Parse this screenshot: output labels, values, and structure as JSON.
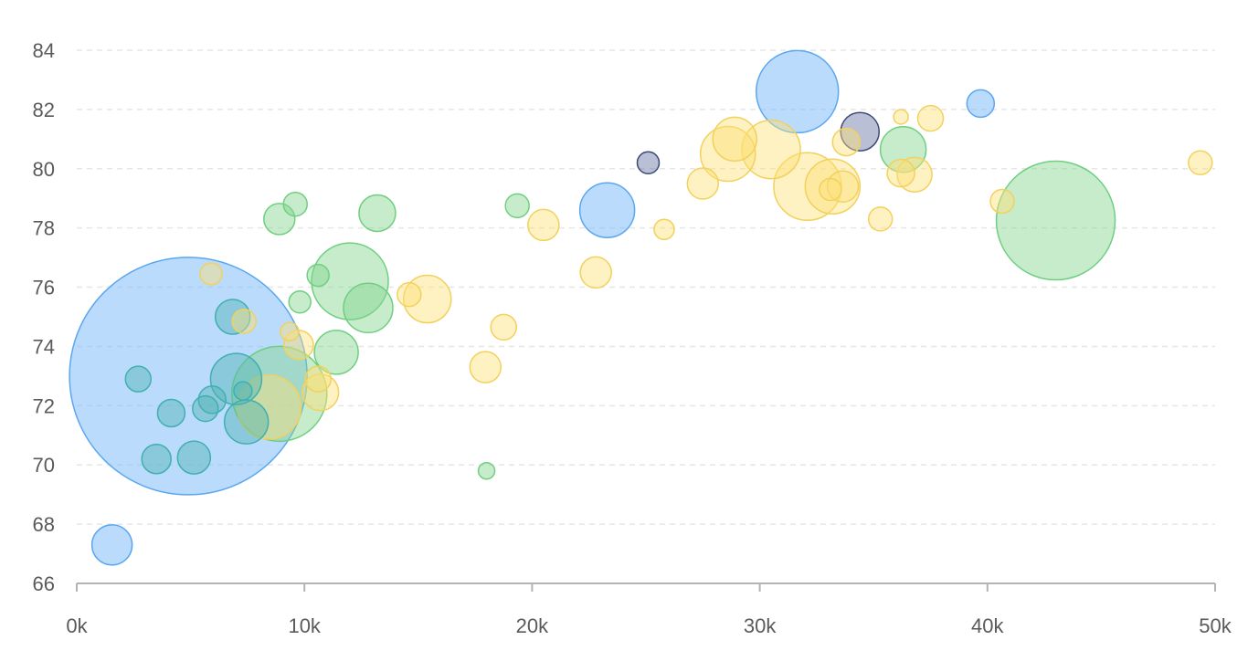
{
  "chart_data": {
    "type": "scatter",
    "subtype": "bubble",
    "title": "",
    "xlabel": "",
    "ylabel": "",
    "xlim": [
      0,
      50000
    ],
    "ylim": [
      66,
      84
    ],
    "x_ticks": [
      0,
      10000,
      20000,
      30000,
      40000,
      50000
    ],
    "x_tick_labels": [
      "0k",
      "10k",
      "20k",
      "30k",
      "40k",
      "50k"
    ],
    "y_ticks": [
      66,
      68,
      70,
      72,
      74,
      76,
      78,
      80,
      82,
      84
    ],
    "y_tick_labels": [
      "66",
      "68",
      "70",
      "72",
      "74",
      "76",
      "78",
      "80",
      "82",
      "84"
    ],
    "grid": "horizontal-dashed",
    "legend": "none",
    "size_note": "bubble size encodes a relative magnitude (area), values in arbitrary units",
    "series": [
      {
        "color": "#5aa7f0",
        "fill": "rgba(120,184,250,0.5)",
        "points": [
          {
            "x": 4900,
            "y": 73.0,
            "size": 130
          },
          {
            "x": 1550,
            "y": 67.3,
            "size": 22
          },
          {
            "x": 31650,
            "y": 82.6,
            "size": 45
          },
          {
            "x": 23300,
            "y": 78.6,
            "size": 30
          },
          {
            "x": 39700,
            "y": 82.2,
            "size": 15
          }
        ]
      },
      {
        "color": "#6fcf80",
        "fill": "rgba(130,212,142,0.45)",
        "points": [
          {
            "x": 43000,
            "y": 78.25,
            "size": 65
          },
          {
            "x": 8900,
            "y": 72.4,
            "size": 52
          },
          {
            "x": 12000,
            "y": 76.2,
            "size": 42
          },
          {
            "x": 12800,
            "y": 75.3,
            "size": 27
          },
          {
            "x": 11400,
            "y": 73.8,
            "size": 24
          },
          {
            "x": 13200,
            "y": 78.5,
            "size": 20
          },
          {
            "x": 36300,
            "y": 80.65,
            "size": 25
          },
          {
            "x": 8900,
            "y": 78.3,
            "size": 17
          },
          {
            "x": 9600,
            "y": 78.8,
            "size": 13
          },
          {
            "x": 9800,
            "y": 75.5,
            "size": 12
          },
          {
            "x": 10600,
            "y": 76.4,
            "size": 12
          },
          {
            "x": 19350,
            "y": 78.75,
            "size": 13
          },
          {
            "x": 18000,
            "y": 69.8,
            "size": 9
          }
        ]
      },
      {
        "color": "#3fb0b0",
        "fill": "rgba(80,180,180,0.45)",
        "points": [
          {
            "x": 7000,
            "y": 72.9,
            "size": 28
          },
          {
            "x": 7450,
            "y": 71.45,
            "size": 24
          },
          {
            "x": 6850,
            "y": 75.0,
            "size": 19
          },
          {
            "x": 2700,
            "y": 72.9,
            "size": 14
          },
          {
            "x": 4150,
            "y": 71.75,
            "size": 15
          },
          {
            "x": 3500,
            "y": 70.2,
            "size": 16
          },
          {
            "x": 5150,
            "y": 70.25,
            "size": 18
          },
          {
            "x": 5950,
            "y": 72.2,
            "size": 15
          },
          {
            "x": 5650,
            "y": 71.9,
            "size": 14
          },
          {
            "x": 7300,
            "y": 72.5,
            "size": 10
          }
        ]
      },
      {
        "color": "#f2d15c",
        "fill": "rgba(252,224,120,0.45)",
        "points": [
          {
            "x": 32100,
            "y": 79.4,
            "size": 37
          },
          {
            "x": 33200,
            "y": 79.4,
            "size": 30
          },
          {
            "x": 30500,
            "y": 80.65,
            "size": 32
          },
          {
            "x": 28600,
            "y": 80.5,
            "size": 30
          },
          {
            "x": 28900,
            "y": 81.0,
            "size": 24
          },
          {
            "x": 8450,
            "y": 71.95,
            "size": 35
          },
          {
            "x": 15400,
            "y": 75.6,
            "size": 26
          },
          {
            "x": 10700,
            "y": 72.45,
            "size": 20
          },
          {
            "x": 33650,
            "y": 79.4,
            "size": 17
          },
          {
            "x": 33800,
            "y": 80.9,
            "size": 15
          },
          {
            "x": 33100,
            "y": 79.3,
            "size": 12
          },
          {
            "x": 36800,
            "y": 79.8,
            "size": 19
          },
          {
            "x": 36200,
            "y": 79.85,
            "size": 15
          },
          {
            "x": 37500,
            "y": 81.7,
            "size": 14
          },
          {
            "x": 36200,
            "y": 81.75,
            "size": 8
          },
          {
            "x": 35300,
            "y": 78.3,
            "size": 13
          },
          {
            "x": 27500,
            "y": 79.5,
            "size": 17
          },
          {
            "x": 20500,
            "y": 78.1,
            "size": 17
          },
          {
            "x": 25800,
            "y": 77.95,
            "size": 11
          },
          {
            "x": 22800,
            "y": 76.5,
            "size": 17
          },
          {
            "x": 18750,
            "y": 74.65,
            "size": 14
          },
          {
            "x": 17950,
            "y": 73.3,
            "size": 17
          },
          {
            "x": 14600,
            "y": 75.75,
            "size": 13
          },
          {
            "x": 9750,
            "y": 74.05,
            "size": 16
          },
          {
            "x": 9350,
            "y": 74.5,
            "size": 10
          },
          {
            "x": 10600,
            "y": 72.9,
            "size": 14
          },
          {
            "x": 7350,
            "y": 74.85,
            "size": 13
          },
          {
            "x": 5900,
            "y": 76.45,
            "size": 12
          },
          {
            "x": 40650,
            "y": 78.9,
            "size": 13
          },
          {
            "x": 49350,
            "y": 80.2,
            "size": 13
          }
        ]
      },
      {
        "color": "#3d4a78",
        "fill": "rgba(80,96,150,0.4)",
        "points": [
          {
            "x": 34400,
            "y": 81.25,
            "size": 21
          },
          {
            "x": 25100,
            "y": 80.2,
            "size": 12
          }
        ]
      }
    ]
  }
}
